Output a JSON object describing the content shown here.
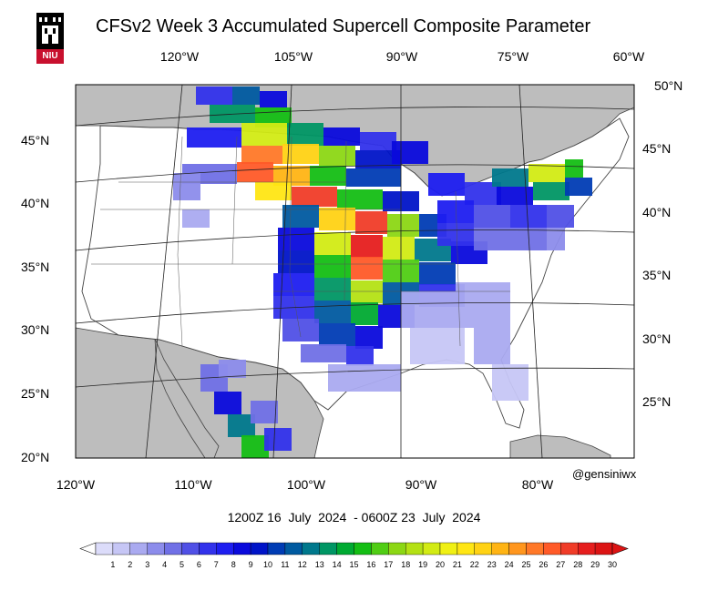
{
  "header": {
    "title": "CFSv2 Week 3 Accumulated Supercell Composite Parameter",
    "logo_text": "NIU"
  },
  "axes": {
    "top_lon_labels": [
      "120°W",
      "105°W",
      "90°W",
      "75°W",
      "60°W"
    ],
    "bottom_lon_labels": [
      "120°W",
      "110°W",
      "100°W",
      "90°W",
      "80°W"
    ],
    "left_lat_labels": [
      "45°N",
      "40°N",
      "35°N",
      "30°N",
      "25°N",
      "20°N"
    ],
    "right_lat_labels": [
      "50°N",
      "45°N",
      "40°N",
      "35°N",
      "30°N",
      "25°N"
    ]
  },
  "credit": "@gensiniwx",
  "valid_period": "1200Z 16  July  2024  - 0600Z 23  July  2024",
  "colorbar": {
    "ticks": [
      "1",
      "2",
      "3",
      "4",
      "5",
      "6",
      "7",
      "8",
      "9",
      "10",
      "11",
      "12",
      "13",
      "14",
      "15",
      "16",
      "17",
      "18",
      "19",
      "20",
      "21",
      "22",
      "23",
      "24",
      "25",
      "26",
      "27",
      "28",
      "29",
      "30"
    ],
    "colors": [
      "#ffffff",
      "#dcdcfa",
      "#c6c6f5",
      "#aaaaf0",
      "#8c8ceb",
      "#7070e6",
      "#5050e6",
      "#3232eb",
      "#1e1ef0",
      "#0a0adc",
      "#0014c8",
      "#003cb4",
      "#005aa0",
      "#00788c",
      "#009664",
      "#00aa32",
      "#14be14",
      "#50cd14",
      "#8cd714",
      "#b4e114",
      "#d2eb14",
      "#f0f014",
      "#ffe614",
      "#ffd214",
      "#ffb414",
      "#ff961e",
      "#ff7828",
      "#ff5a28",
      "#f03c28",
      "#e61e1e",
      "#dc1414"
    ]
  },
  "map_regions": [
    "Continental United States",
    "Southern Canada",
    "Northern Mexico",
    "Gulf of Mexico",
    "Atlantic Ocean",
    "Pacific Ocean",
    "Great Lakes"
  ]
}
